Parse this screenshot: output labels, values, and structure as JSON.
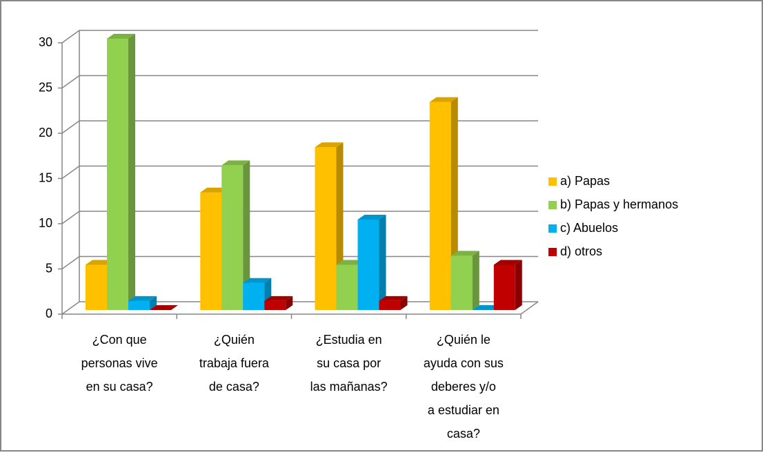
{
  "chart_data": {
    "type": "bar3d",
    "categories": [
      "¿Con que personas vive en su casa?",
      "¿Quién trabaja fuera de casa?",
      "¿Estudia en su casa por las mañanas?",
      "¿Quién le ayuda con sus deberes  y/o a estudiar en casa?"
    ],
    "series": [
      {
        "name": "a) Papas",
        "color": "#FFC000",
        "values": [
          5,
          13,
          18,
          23
        ]
      },
      {
        "name": "b) Papas y hermanos",
        "color": "#92D050",
        "values": [
          30,
          16,
          5,
          6
        ]
      },
      {
        "name": "c) Abuelos",
        "color": "#00B0F0",
        "values": [
          1,
          3,
          10,
          0
        ]
      },
      {
        "name": "d) otros",
        "color": "#C00000",
        "values": [
          0,
          1,
          1,
          5
        ]
      }
    ],
    "ylim": [
      0,
      30
    ],
    "yticks": [
      0,
      5,
      10,
      15,
      20,
      25,
      30
    ],
    "grid": true,
    "legend": "right"
  }
}
